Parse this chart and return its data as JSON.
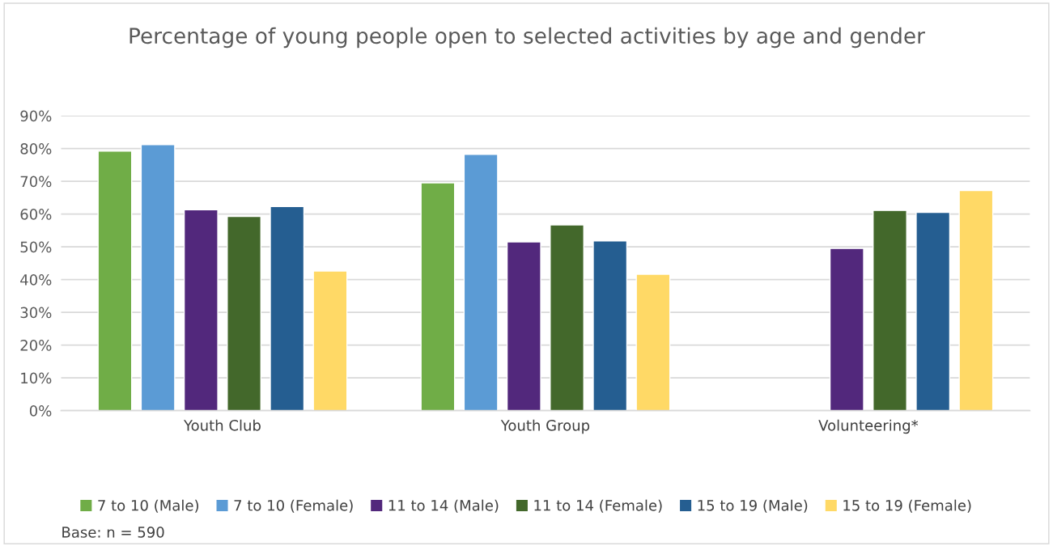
{
  "chart_data": {
    "type": "bar",
    "title": "Percentage of young people open to selected activities by age and gender",
    "categories": [
      "Youth Club",
      "Youth Group",
      "Volunteering*"
    ],
    "series": [
      {
        "name": "7 to 10 (Male)",
        "color": "#70ad47",
        "values": [
          79.2,
          69.5,
          null
        ]
      },
      {
        "name": "7 to 10 (Female)",
        "color": "#5b9bd5",
        "values": [
          81.2,
          78.2,
          null
        ]
      },
      {
        "name": "11 to 14 (Male)",
        "color": "#52287c",
        "values": [
          61.3,
          51.5,
          49.5
        ]
      },
      {
        "name": "11 to 14 (Female)",
        "color": "#43682b",
        "values": [
          59.3,
          56.7,
          61.1
        ]
      },
      {
        "name": "15 to 19 (Male)",
        "color": "#255e91",
        "values": [
          62.3,
          51.8,
          60.5
        ]
      },
      {
        "name": "15 to 19 (Female)",
        "color": "#ffd966",
        "values": [
          42.6,
          41.6,
          67.2
        ]
      }
    ],
    "ylim": [
      0,
      90
    ],
    "yticks": [
      {
        "value": 0,
        "label": "0%"
      },
      {
        "value": 10,
        "label": "10%"
      },
      {
        "value": 20,
        "label": "20%"
      },
      {
        "value": 30,
        "label": "30%"
      },
      {
        "value": 40,
        "label": "40%"
      },
      {
        "value": 50,
        "label": "50%"
      },
      {
        "value": 60,
        "label": "60%"
      },
      {
        "value": 70,
        "label": "70%"
      },
      {
        "value": 80,
        "label": "80%"
      },
      {
        "value": 90,
        "label": "90%"
      }
    ],
    "grid": "y",
    "legend": "bottom",
    "annotations": [
      "Base: n = 590"
    ]
  }
}
